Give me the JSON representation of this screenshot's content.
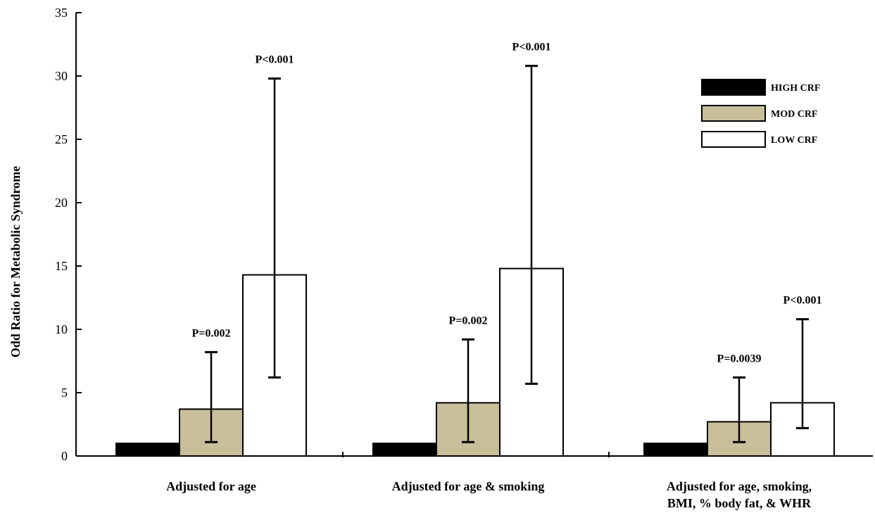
{
  "chart_data": {
    "type": "bar",
    "ylabel": "Odd Ratio for Metabolic Syndrome",
    "ylim": [
      0,
      35
    ],
    "yticks": [
      0,
      5,
      10,
      15,
      20,
      25,
      30,
      35
    ],
    "categories": [
      [
        "Adjusted for age"
      ],
      [
        "Adjusted for age & smoking"
      ],
      [
        "Adjusted for age, smoking,",
        "BMI, % body fat,  & WHR"
      ]
    ],
    "series": [
      {
        "name": "HIGH CRF",
        "color": "#000000",
        "values": [
          1.0,
          1.0,
          1.0
        ],
        "err_low": [
          null,
          null,
          null
        ],
        "err_high": [
          null,
          null,
          null
        ],
        "annotations": [
          "",
          "",
          ""
        ]
      },
      {
        "name": "MOD CRF",
        "color": "#c8bf9a",
        "values": [
          3.7,
          4.2,
          2.7
        ],
        "err_low": [
          1.1,
          1.1,
          1.1
        ],
        "err_high": [
          8.2,
          9.2,
          6.2
        ],
        "annotations": [
          "P=0.002",
          "P=0.002",
          "P=0.0039"
        ]
      },
      {
        "name": "LOW CRF",
        "color": "#ffffff",
        "values": [
          14.3,
          14.8,
          4.2
        ],
        "err_low": [
          6.2,
          5.7,
          2.2
        ],
        "err_high": [
          29.8,
          30.8,
          10.8
        ],
        "annotations": [
          "P<0.001",
          "P<0.001",
          "P<0.001"
        ]
      }
    ],
    "legend": {
      "position": "top-right"
    },
    "grid": false
  }
}
